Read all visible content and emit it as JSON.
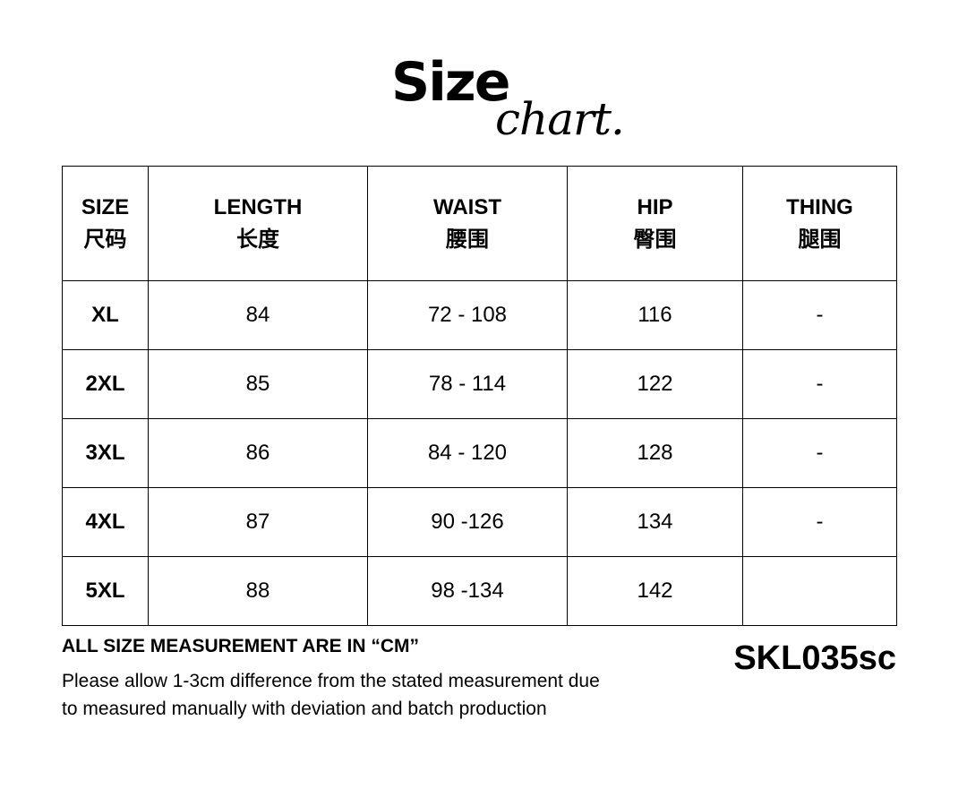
{
  "title": {
    "main": "Size",
    "sub": "chart."
  },
  "table": {
    "headers": [
      {
        "en": "SIZE",
        "zh": "尺码"
      },
      {
        "en": "LENGTH",
        "zh": "长度"
      },
      {
        "en": "WAIST",
        "zh": "腰围"
      },
      {
        "en": "HIP",
        "zh": "臀围"
      },
      {
        "en": "THING",
        "zh": "腿围"
      }
    ],
    "rows": [
      [
        "XL",
        "84",
        "72 - 108",
        "116",
        "-"
      ],
      [
        "2XL",
        "85",
        "78 - 114",
        "122",
        "-"
      ],
      [
        "3XL",
        "86",
        "84 - 120",
        "128",
        "-"
      ],
      [
        "4XL",
        "87",
        "90 -126",
        "134",
        "-"
      ],
      [
        "5XL",
        "88",
        "98 -134",
        "142",
        ""
      ]
    ]
  },
  "footer": {
    "unit_note": "ALL SIZE MEASUREMENT ARE IN  “CM”",
    "disclaimer_line1": "Please allow 1-3cm difference from the stated measurement due",
    "disclaimer_line2": "to measured manually with deviation and batch production",
    "product_code": "SKL035sc"
  }
}
